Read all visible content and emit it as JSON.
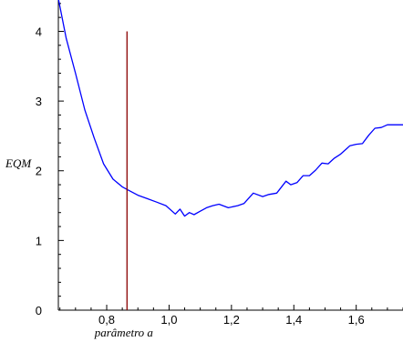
{
  "chart_data": {
    "type": "line",
    "xlabel": "parâmetro  a",
    "ylabel": "EQM",
    "xlim": [
      0.645,
      1.75
    ],
    "ylim": [
      0,
      4.45
    ],
    "grid": false,
    "x_ticks": [
      0.8,
      1.0,
      1.2,
      1.4,
      1.6
    ],
    "x_tick_labels": [
      "0,8",
      "1,0",
      "1,2",
      "1,4",
      "1,6"
    ],
    "y_ticks": [
      0,
      1,
      2,
      3,
      4
    ],
    "y_tick_labels": [
      "0",
      "1",
      "2",
      "3",
      "4"
    ],
    "series": [
      {
        "color": "#0000ff",
        "x": [
          0.645,
          0.67,
          0.7,
          0.73,
          0.76,
          0.79,
          0.82,
          0.85,
          0.87,
          0.9,
          0.93,
          0.96,
          0.99,
          1.02,
          1.035,
          1.05,
          1.065,
          1.08,
          1.1,
          1.12,
          1.14,
          1.16,
          1.19,
          1.22,
          1.24,
          1.27,
          1.3,
          1.32,
          1.345,
          1.375,
          1.39,
          1.41,
          1.43,
          1.45,
          1.47,
          1.49,
          1.51,
          1.53,
          1.55,
          1.58,
          1.6,
          1.62,
          1.64,
          1.66,
          1.68,
          1.7,
          1.72,
          1.735,
          1.75
        ],
        "y": [
          4.47,
          3.9,
          3.4,
          2.87,
          2.47,
          2.1,
          1.88,
          1.77,
          1.72,
          1.65,
          1.6,
          1.55,
          1.5,
          1.38,
          1.45,
          1.35,
          1.4,
          1.37,
          1.42,
          1.47,
          1.5,
          1.52,
          1.47,
          1.5,
          1.53,
          1.68,
          1.63,
          1.66,
          1.68,
          1.85,
          1.8,
          1.83,
          1.93,
          1.93,
          2.01,
          2.11,
          2.1,
          2.18,
          2.24,
          2.36,
          2.38,
          2.39,
          2.51,
          2.61,
          2.62,
          2.66,
          2.66,
          2.66,
          2.66
        ]
      },
      {
        "color": "#8b0000",
        "x": [
          0.865,
          0.865
        ],
        "y": [
          0,
          4.0
        ]
      }
    ]
  }
}
